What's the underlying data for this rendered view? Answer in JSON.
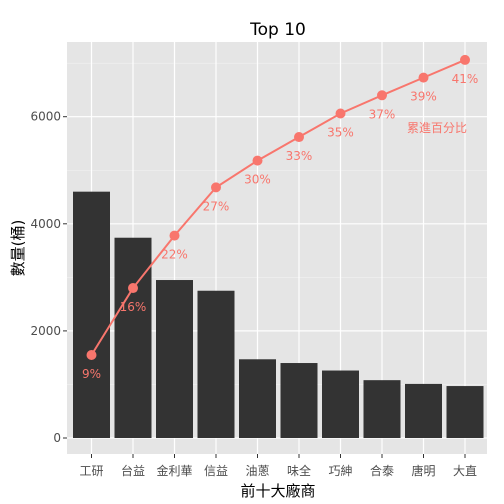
{
  "chart_data": {
    "type": "bar",
    "title": "Top 10",
    "xlabel": "前十大廠商",
    "ylabel": "數量(桶)",
    "categories": [
      "工研",
      "台益",
      "金利華",
      "信益",
      "油蔥",
      "味全",
      "巧紳",
      "合泰",
      "唐明",
      "大直"
    ],
    "values": [
      4600,
      3740,
      2950,
      2750,
      1470,
      1400,
      1260,
      1080,
      1010,
      970
    ],
    "ylim": [
      0,
      7450
    ],
    "yticks": [
      0,
      2000,
      4000,
      6000
    ],
    "ytick_labels": [
      "0",
      "2000",
      "4000",
      "6000"
    ],
    "grid": true,
    "bar_color": "#333333",
    "panel_color": "#e5e5e5",
    "line_color": "#f8766d",
    "cumulative": {
      "values": [
        1550,
        2800,
        3780,
        4680,
        5180,
        5620,
        6060,
        6400,
        6730,
        7060
      ],
      "labels": [
        "9%",
        "16%",
        "22%",
        "27%",
        "30%",
        "33%",
        "35%",
        "37%",
        "39%",
        "41%"
      ],
      "annotation": "累進百分比"
    }
  }
}
